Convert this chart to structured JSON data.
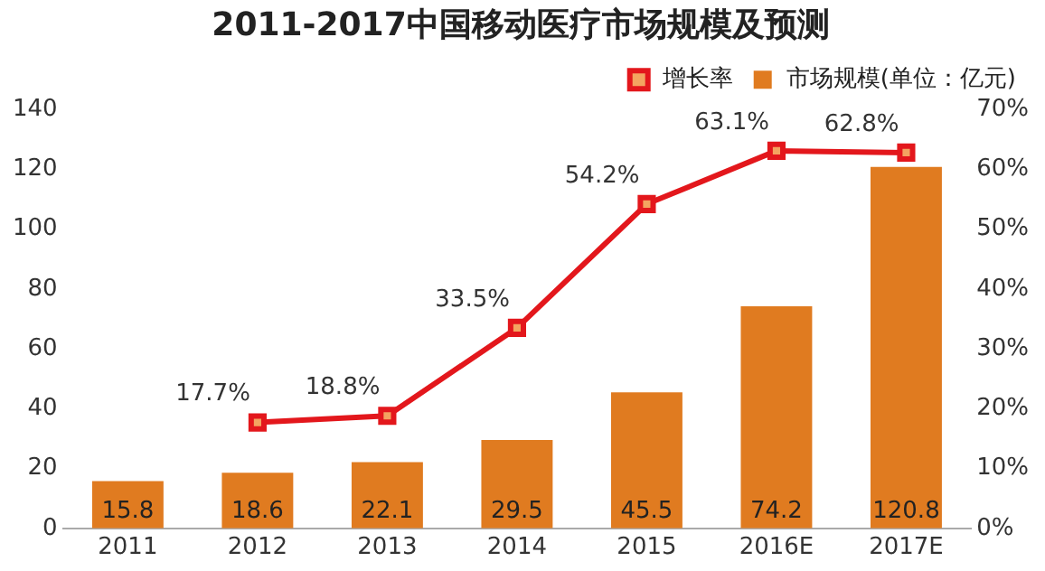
{
  "chart_data": {
    "type": "bar",
    "title": "2011-2017中国移动医疗市场规模及预测",
    "categories": [
      "2011",
      "2012",
      "2013",
      "2014",
      "2015",
      "2016E",
      "2017E"
    ],
    "series": [
      {
        "name": "市场规模(单位：亿元)",
        "color": "#e07b20",
        "values": [
          15.8,
          18.6,
          22.1,
          29.5,
          45.5,
          74.2,
          120.8
        ]
      },
      {
        "name": "增长率",
        "type": "line",
        "axis": "y2",
        "color": "#e3171c",
        "values": [
          null,
          17.7,
          18.8,
          33.5,
          54.2,
          63.1,
          62.8
        ],
        "value_labels": [
          null,
          "17.7%",
          "18.8%",
          "33.5%",
          "54.2%",
          "63.1%",
          "62.8%"
        ]
      }
    ],
    "ylim": [
      0,
      140
    ],
    "yticks": [
      0,
      20,
      40,
      60,
      80,
      100,
      120,
      140
    ],
    "y2lim": [
      0,
      70
    ],
    "y2ticks": [
      {
        "value": 0,
        "label": "0%"
      },
      {
        "value": 10,
        "label": "10%"
      },
      {
        "value": 20,
        "label": "20%"
      },
      {
        "value": 30,
        "label": "30%"
      },
      {
        "value": 40,
        "label": "40%"
      },
      {
        "value": 50,
        "label": "50%"
      },
      {
        "value": 60,
        "label": "60%"
      },
      {
        "value": 70,
        "label": "70%"
      }
    ],
    "data_labels": true,
    "grid": false,
    "legend": "top right",
    "marker": "square",
    "line_style": "solid"
  }
}
